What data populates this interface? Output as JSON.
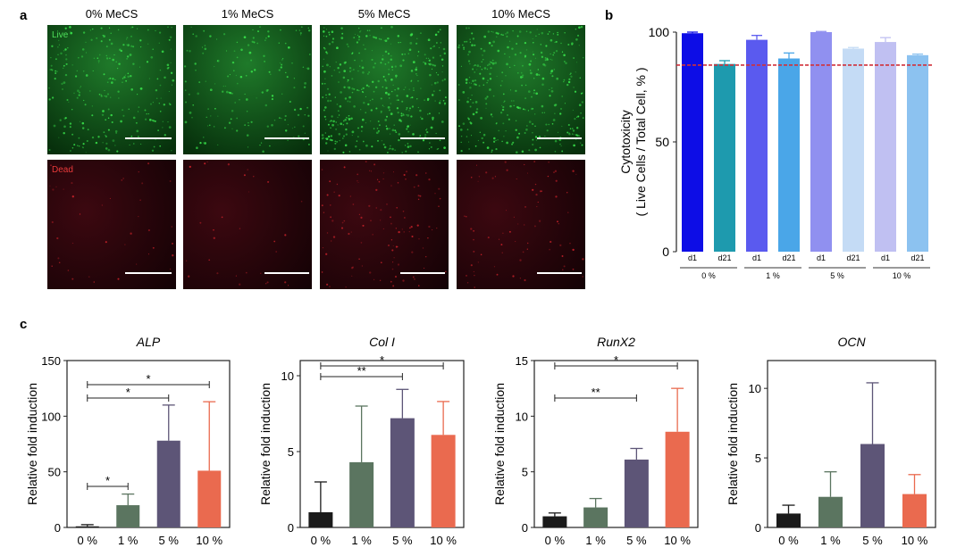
{
  "panel_letters": {
    "a": "a",
    "b": "b",
    "c": "c"
  },
  "panel_a": {
    "columns": [
      "0% MeCS",
      "1% MeCS",
      "5% MeCS",
      "10% MeCS"
    ],
    "row_labels": {
      "live": "Live",
      "dead": "Dead"
    },
    "colors": {
      "live_bg": "#0a3a10",
      "live_dots": "#38e04a",
      "dead_bg": "#1b0306",
      "dead_dots": "#e0262e"
    }
  },
  "chart_data": [
    {
      "id": "b",
      "type": "bar",
      "ylabel_lines": [
        "Cytotoxicity",
        "( Live Cells / Total Cell, % )"
      ],
      "ylim": [
        0,
        100
      ],
      "yticks": [
        0,
        50,
        100
      ],
      "categories": [
        "d1",
        "d21",
        "d1",
        "d21",
        "d1",
        "d21",
        "d1",
        "d21"
      ],
      "groups": [
        "0 %",
        "1 %",
        "5 %",
        "10 %"
      ],
      "values": [
        99.5,
        85.5,
        96.5,
        88,
        100,
        92.5,
        95.5,
        89.5
      ],
      "errors": [
        0.5,
        1.5,
        2,
        2.5,
        0.3,
        0.5,
        2,
        0.5
      ],
      "colors": [
        "#0d0de6",
        "#1e9aae",
        "#5a5aef",
        "#4aa6e8",
        "#9090f0",
        "#c4dbf5",
        "#c0c0f2",
        "#8cc2f0"
      ],
      "reference_line": {
        "value": 85,
        "color": "#d0303a"
      }
    },
    {
      "id": "ALP",
      "type": "bar",
      "title": "ALP",
      "ylabel": "Relative fold induction",
      "ylim": [
        0,
        150
      ],
      "yticks": [
        0,
        50,
        100,
        150
      ],
      "categories": [
        "0 %",
        "1 %",
        "5 %",
        "10 %"
      ],
      "values": [
        1,
        20,
        78,
        51
      ],
      "errors": [
        1.5,
        10,
        32,
        62
      ],
      "colors": [
        "#1a1a1a",
        "#5b7560",
        "#5d5577",
        "#ea6a4f"
      ],
      "significance": [
        {
          "from": 0,
          "to": 3,
          "label": "*"
        },
        {
          "from": 0,
          "to": 2,
          "label": "*"
        },
        {
          "from": 0,
          "to": 1,
          "label": "*"
        }
      ]
    },
    {
      "id": "ColI",
      "type": "bar",
      "title": "Col I",
      "ylabel": "Relative fold induction",
      "ylim": [
        0,
        11
      ],
      "yticks": [
        0,
        5,
        10
      ],
      "categories": [
        "0 %",
        "1 %",
        "5 %",
        "10 %"
      ],
      "values": [
        1,
        4.3,
        7.2,
        6.1
      ],
      "errors": [
        2,
        3.7,
        1.9,
        2.2
      ],
      "colors": [
        "#1a1a1a",
        "#5b7560",
        "#5d5577",
        "#ea6a4f"
      ],
      "significance": [
        {
          "from": 0,
          "to": 3,
          "label": "*"
        },
        {
          "from": 0,
          "to": 2,
          "label": "**"
        }
      ]
    },
    {
      "id": "RunX2",
      "type": "bar",
      "title": "RunX2",
      "ylabel": "Relative fold induction",
      "ylim": [
        0,
        15
      ],
      "yticks": [
        0,
        5,
        10,
        15
      ],
      "categories": [
        "0 %",
        "1 %",
        "5 %",
        "10 %"
      ],
      "values": [
        1,
        1.8,
        6.1,
        8.6
      ],
      "errors": [
        0.3,
        0.8,
        1,
        3.9
      ],
      "colors": [
        "#1a1a1a",
        "#5b7560",
        "#5d5577",
        "#ea6a4f"
      ],
      "significance": [
        {
          "from": 0,
          "to": 3,
          "label": "*"
        },
        {
          "from": 0,
          "to": 2,
          "label": "**"
        }
      ]
    },
    {
      "id": "OCN",
      "type": "bar",
      "title": "OCN",
      "ylabel": "Relative fold induction",
      "ylim": [
        0,
        12
      ],
      "yticks": [
        0,
        5,
        10
      ],
      "categories": [
        "0 %",
        "1 %",
        "5 %",
        "10 %"
      ],
      "values": [
        1,
        2.2,
        6,
        2.4
      ],
      "errors": [
        0.6,
        1.8,
        4.4,
        1.4
      ],
      "colors": [
        "#1a1a1a",
        "#5b7560",
        "#5d5577",
        "#ea6a4f"
      ],
      "significance": []
    }
  ]
}
